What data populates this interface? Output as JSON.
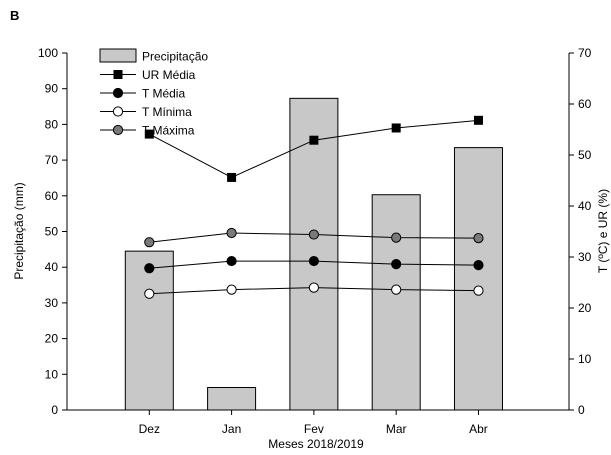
{
  "chart_data": {
    "type": "bar",
    "panel_label": "B",
    "categories": [
      "Dez",
      "Jan",
      "Fev",
      "Mar",
      "Abr"
    ],
    "xlabel": "Meses 2018/2019",
    "ylabel_left": "Precipitação (mm)",
    "ylabel_right": "T (ºC) e UR (%)",
    "ylim_left": [
      0,
      100
    ],
    "ylim_right": [
      0,
      70
    ],
    "yticks_left": [
      0,
      10,
      20,
      30,
      40,
      50,
      60,
      70,
      80,
      90,
      100
    ],
    "yticks_right": [
      0,
      10,
      20,
      30,
      40,
      50,
      60,
      70
    ],
    "grid": false,
    "legend_position": "top-left",
    "series": [
      {
        "name": "Precipitação",
        "kind": "bar",
        "axis": "left",
        "color": "#c8c8c8",
        "values": [
          44.5,
          6.3,
          87.3,
          60.3,
          73.5
        ]
      },
      {
        "name": "UR Média",
        "kind": "line",
        "axis": "right",
        "marker": "square",
        "color": "#000000",
        "values": [
          54.1,
          45.6,
          52.9,
          55.3,
          56.8
        ]
      },
      {
        "name": "T Média",
        "kind": "line",
        "axis": "right",
        "marker": "circle-filled",
        "color": "#000000",
        "values": [
          27.8,
          29.2,
          29.2,
          28.6,
          28.4
        ]
      },
      {
        "name": "T Mínima",
        "kind": "line",
        "axis": "right",
        "marker": "circle-open",
        "color": "#000000",
        "values": [
          22.8,
          23.6,
          24.0,
          23.6,
          23.4
        ]
      },
      {
        "name": "T Máxima",
        "kind": "line",
        "axis": "right",
        "marker": "circle-gray",
        "color": "#666666",
        "values": [
          32.9,
          34.7,
          34.4,
          33.8,
          33.7
        ]
      }
    ]
  }
}
